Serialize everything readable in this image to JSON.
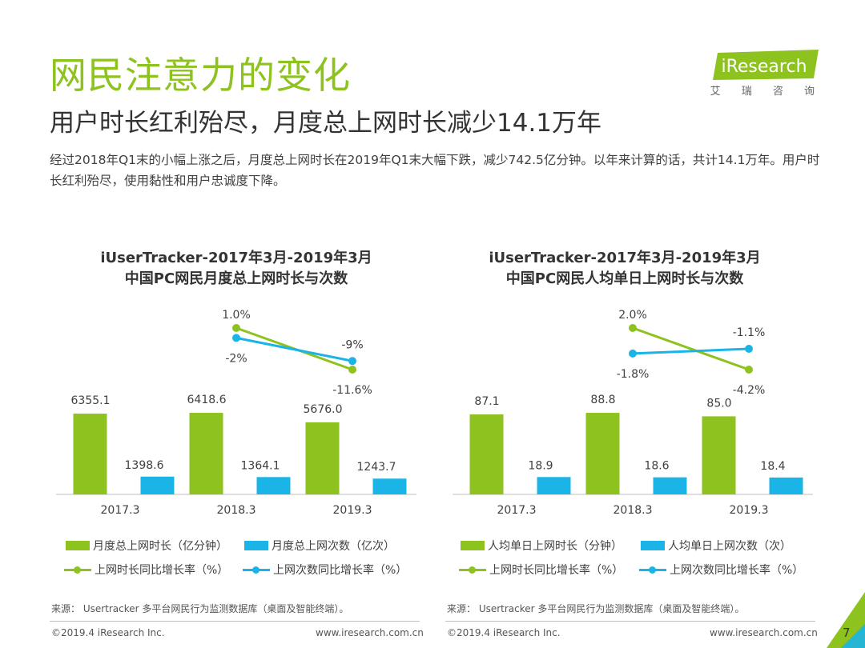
{
  "header": {
    "title": "网民注意力的变化",
    "subtitle": "用户时长红利殆尽，月度总上网时长减少14.1万年",
    "description": "经过2018年Q1末的小幅上涨之后，月度总上网时长在2019年Q1末大幅下跌，减少742.5亿分钟。以年来计算的话，共计14.1万年。用户时长红利殆尽，使用黏性和用户忠诚度下降。"
  },
  "logo": {
    "text": "iResearch",
    "subtext": "艾 瑞 咨 询"
  },
  "colors": {
    "green": "#8dc21f",
    "blue": "#1bb4e6",
    "text": "#404040"
  },
  "chart_data": [
    {
      "type": "bar",
      "title_line1": "iUserTracker-2017年3月-2019年3月",
      "title_line2": "中国PC网民月度总上网时长与次数",
      "categories": [
        "2017.3",
        "2018.3",
        "2019.3"
      ],
      "series": [
        {
          "name": "月度总上网时长（亿分钟）",
          "kind": "bar",
          "values": [
            6355.1,
            6418.6,
            5676.0
          ],
          "labels": [
            "6355.1",
            "6418.6",
            "5676.0"
          ]
        },
        {
          "name": "月度总上网次数（亿次）",
          "kind": "bar",
          "values": [
            1398.6,
            1364.1,
            1243.7
          ],
          "labels": [
            "1398.6",
            "1364.1",
            "1243.7"
          ]
        },
        {
          "name": "上网时长同比增长率（%）",
          "kind": "line",
          "points": [
            1.0,
            -11.6
          ],
          "labels": [
            "1.0%",
            "-11.6%"
          ]
        },
        {
          "name": "上网次数同比增长率（%）",
          "kind": "line",
          "points": [
            -2,
            -9
          ],
          "labels": [
            "-2%",
            "-9%"
          ]
        }
      ],
      "source": "来源： Usertracker 多平台网民行为监测数据库（桌面及智能终端）。"
    },
    {
      "type": "bar",
      "title_line1": "iUserTracker-2017年3月-2019年3月",
      "title_line2": "中国PC网民人均单日上网时长与次数",
      "categories": [
        "2017.3",
        "2018.3",
        "2019.3"
      ],
      "series": [
        {
          "name": "人均单日上网时长（分钟）",
          "kind": "bar",
          "values": [
            87.1,
            88.8,
            85.0
          ],
          "labels": [
            "87.1",
            "88.8",
            "85.0"
          ]
        },
        {
          "name": "人均单日上网次数（次）",
          "kind": "bar",
          "values": [
            18.9,
            18.6,
            18.4
          ],
          "labels": [
            "18.9",
            "18.6",
            "18.4"
          ]
        },
        {
          "name": "上网时长同比增长率（%）",
          "kind": "line",
          "points": [
            2.0,
            -4.2
          ],
          "labels": [
            "2.0%",
            "-4.2%"
          ]
        },
        {
          "name": "上网次数同比增长率（%）",
          "kind": "line",
          "points": [
            -1.8,
            -1.1
          ],
          "labels": [
            "-1.8%",
            "-1.1%"
          ]
        }
      ],
      "source": "来源： Usertracker 多平台网民行为监测数据库（桌面及智能终端）。"
    }
  ],
  "footer": {
    "copyright": "©2019.4 iResearch Inc.",
    "url": "www.iresearch.com.cn",
    "page_number": "7"
  }
}
